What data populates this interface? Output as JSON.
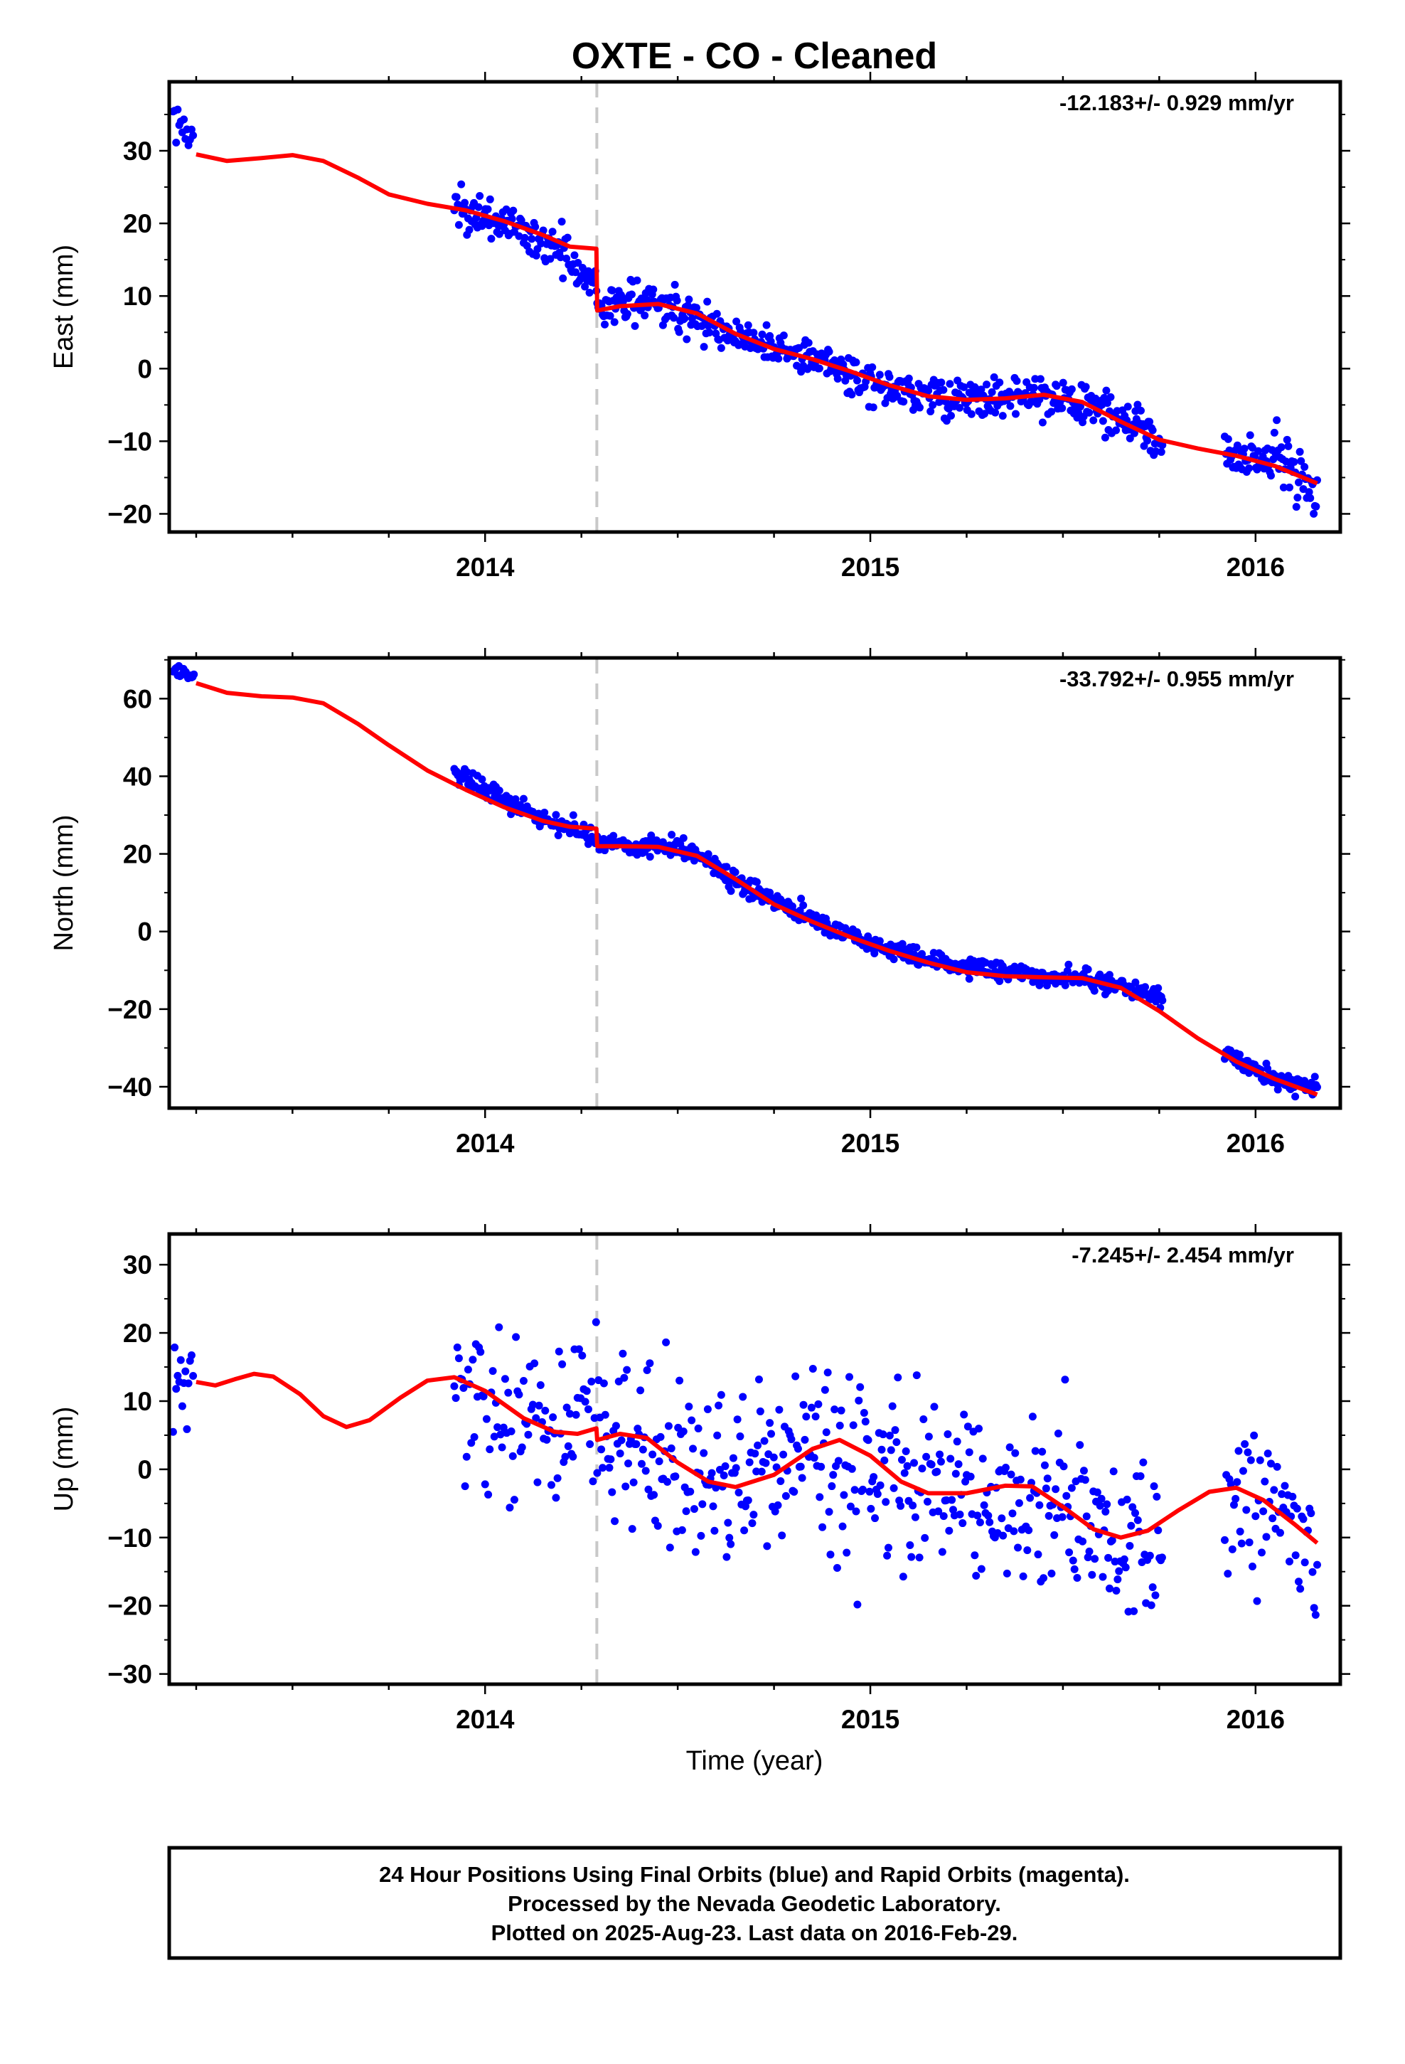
{
  "title": "OXTE  - CO - Cleaned",
  "xlabel": "Time (year)",
  "footer": [
    "24 Hour Positions Using Final Orbits (blue) and Rapid Orbits (magenta).",
    "Processed by the Nevada Geodetic Laboratory.",
    "Plotted on 2025-Aug-23. Last data on 2016-Feb-29."
  ],
  "colors": {
    "points": "#0000ff",
    "model": "#ff0000",
    "event_line": "#c8c8c8",
    "frame": "#000000"
  },
  "chart_data": [
    {
      "type": "scatter",
      "name": "east",
      "ylabel": "East (mm)",
      "rate_text": "-12.183+/- 0.929 mm/yr",
      "xlim": [
        2013.18,
        2016.22
      ],
      "ylim": [
        -22.5,
        39.5
      ],
      "x_ticks": [
        2014,
        2015,
        2016
      ],
      "y_ticks": [
        -20,
        -10,
        0,
        10,
        20,
        30
      ],
      "event_lines": [
        2014.29
      ],
      "model": [
        [
          2013.25,
          29.5
        ],
        [
          2013.33,
          28.6
        ],
        [
          2013.42,
          29.0
        ],
        [
          2013.5,
          29.4
        ],
        [
          2013.58,
          28.6
        ],
        [
          2013.67,
          26.3
        ],
        [
          2013.75,
          24.0
        ],
        [
          2013.85,
          22.7
        ],
        [
          2013.95,
          21.8
        ],
        [
          2014.05,
          20.3
        ],
        [
          2014.15,
          18.4
        ],
        [
          2014.22,
          16.8
        ],
        [
          2014.289,
          16.5
        ],
        [
          2014.291,
          8.0
        ],
        [
          2014.35,
          8.6
        ],
        [
          2014.45,
          8.9
        ],
        [
          2014.55,
          7.6
        ],
        [
          2014.65,
          4.8
        ],
        [
          2014.75,
          2.7
        ],
        [
          2014.85,
          1.3
        ],
        [
          2014.95,
          -0.4
        ],
        [
          2015.05,
          -2.3
        ],
        [
          2015.15,
          -3.8
        ],
        [
          2015.25,
          -4.3
        ],
        [
          2015.35,
          -4.1
        ],
        [
          2015.45,
          -3.6
        ],
        [
          2015.55,
          -4.6
        ],
        [
          2015.65,
          -7.3
        ],
        [
          2015.75,
          -9.8
        ],
        [
          2015.85,
          -11.0
        ],
        [
          2015.95,
          -12.0
        ],
        [
          2016.05,
          -13.4
        ],
        [
          2016.16,
          -15.8
        ]
      ],
      "segments": [
        {
          "x0": 2013.19,
          "x1": 2013.245,
          "step": 0.004,
          "sd": 1.3,
          "trend": [
            [
              2013.19,
              35.0
            ],
            [
              2013.245,
              31.0
            ]
          ]
        },
        {
          "x0": 2013.92,
          "x1": 2014.289,
          "step": 0.003,
          "sd": 1.4,
          "trend": [
            [
              2013.92,
              22.0
            ],
            [
              2014.05,
              20.0
            ],
            [
              2014.2,
              16.0
            ],
            [
              2014.289,
              11.5
            ]
          ]
        },
        {
          "x0": 2014.291,
          "x1": 2015.76,
          "step": 0.0028,
          "sd": 1.4,
          "trend": [
            [
              2014.291,
              8.5
            ],
            [
              2014.45,
              9.5
            ],
            [
              2014.55,
              7.0
            ],
            [
              2014.65,
              4.5
            ],
            [
              2014.85,
              1.5
            ],
            [
              2015.0,
              -2.0
            ],
            [
              2015.2,
              -4.0
            ],
            [
              2015.45,
              -4.0
            ],
            [
              2015.6,
              -5.5
            ],
            [
              2015.76,
              -10.0
            ]
          ]
        },
        {
          "x0": 2015.92,
          "x1": 2016.16,
          "step": 0.003,
          "sd": 1.6,
          "trend": [
            [
              2015.92,
              -12.5
            ],
            [
              2016.05,
              -12.0
            ],
            [
              2016.16,
              -16.5
            ]
          ]
        }
      ]
    },
    {
      "type": "scatter",
      "name": "north",
      "ylabel": "North (mm)",
      "rate_text": "-33.792+/- 0.955 mm/yr",
      "xlim": [
        2013.18,
        2016.22
      ],
      "ylim": [
        -45.5,
        70.5
      ],
      "x_ticks": [
        2014,
        2015,
        2016
      ],
      "y_ticks": [
        -40,
        -20,
        0,
        20,
        40,
        60
      ],
      "event_lines": [
        2014.29
      ],
      "model": [
        [
          2013.25,
          64.0
        ],
        [
          2013.33,
          61.5
        ],
        [
          2013.42,
          60.6
        ],
        [
          2013.5,
          60.3
        ],
        [
          2013.58,
          58.8
        ],
        [
          2013.67,
          53.5
        ],
        [
          2013.75,
          48.0
        ],
        [
          2013.85,
          41.5
        ],
        [
          2013.95,
          36.5
        ],
        [
          2014.05,
          32.0
        ],
        [
          2014.15,
          28.5
        ],
        [
          2014.22,
          27.0
        ],
        [
          2014.289,
          26.5
        ],
        [
          2014.291,
          22.0
        ],
        [
          2014.35,
          22.0
        ],
        [
          2014.45,
          21.8
        ],
        [
          2014.55,
          19.5
        ],
        [
          2014.65,
          13.5
        ],
        [
          2014.75,
          7.0
        ],
        [
          2014.85,
          2.5
        ],
        [
          2014.95,
          -1.5
        ],
        [
          2015.05,
          -5.0
        ],
        [
          2015.15,
          -8.0
        ],
        [
          2015.25,
          -10.5
        ],
        [
          2015.35,
          -11.5
        ],
        [
          2015.45,
          -11.8
        ],
        [
          2015.55,
          -12.0
        ],
        [
          2015.65,
          -14.5
        ],
        [
          2015.75,
          -20.5
        ],
        [
          2015.85,
          -27.5
        ],
        [
          2015.95,
          -33.5
        ],
        [
          2016.05,
          -38.0
        ],
        [
          2016.16,
          -42.0
        ]
      ],
      "segments": [
        {
          "x0": 2013.19,
          "x1": 2013.245,
          "step": 0.003,
          "sd": 1.0,
          "trend": [
            [
              2013.19,
              67.3
            ],
            [
              2013.245,
              65.5
            ]
          ]
        },
        {
          "x0": 2013.92,
          "x1": 2014.289,
          "step": 0.003,
          "sd": 1.2,
          "trend": [
            [
              2013.92,
              41.0
            ],
            [
              2014.0,
              37.0
            ],
            [
              2014.15,
              29.0
            ],
            [
              2014.289,
              24.0
            ]
          ]
        },
        {
          "x0": 2014.291,
          "x1": 2015.76,
          "step": 0.0028,
          "sd": 1.3,
          "trend": [
            [
              2014.291,
              22.5
            ],
            [
              2014.45,
              23.0
            ],
            [
              2014.55,
              20.0
            ],
            [
              2014.65,
              13.0
            ],
            [
              2014.8,
              5.0
            ],
            [
              2015.0,
              -3.0
            ],
            [
              2015.2,
              -8.5
            ],
            [
              2015.45,
              -11.5
            ],
            [
              2015.6,
              -13.0
            ],
            [
              2015.76,
              -17.0
            ]
          ]
        },
        {
          "x0": 2015.92,
          "x1": 2016.16,
          "step": 0.003,
          "sd": 1.2,
          "trend": [
            [
              2015.92,
              -31.5
            ],
            [
              2016.05,
              -38.0
            ],
            [
              2016.16,
              -41.0
            ]
          ]
        }
      ]
    },
    {
      "type": "scatter",
      "name": "up",
      "ylabel": "Up (mm)",
      "rate_text": "-7.245+/- 2.454 mm/yr",
      "xlim": [
        2013.18,
        2016.22
      ],
      "ylim": [
        -31.5,
        34.5
      ],
      "x_ticks": [
        2014,
        2015,
        2016
      ],
      "y_ticks": [
        -30,
        -20,
        -10,
        0,
        10,
        20,
        30
      ],
      "event_lines": [
        2014.29
      ],
      "model": [
        [
          2013.25,
          12.8
        ],
        [
          2013.3,
          12.3
        ],
        [
          2013.35,
          13.2
        ],
        [
          2013.4,
          14.0
        ],
        [
          2013.45,
          13.6
        ],
        [
          2013.52,
          11.0
        ],
        [
          2013.58,
          7.8
        ],
        [
          2013.64,
          6.2
        ],
        [
          2013.7,
          7.2
        ],
        [
          2013.78,
          10.5
        ],
        [
          2013.85,
          13.0
        ],
        [
          2013.92,
          13.5
        ],
        [
          2014.0,
          11.5
        ],
        [
          2014.1,
          7.5
        ],
        [
          2014.18,
          5.5
        ],
        [
          2014.24,
          5.2
        ],
        [
          2014.289,
          6.0
        ],
        [
          2014.291,
          4.3
        ],
        [
          2014.35,
          5.2
        ],
        [
          2014.42,
          4.6
        ],
        [
          2014.5,
          1.0
        ],
        [
          2014.58,
          -1.8
        ],
        [
          2014.65,
          -2.6
        ],
        [
          2014.75,
          -0.8
        ],
        [
          2014.85,
          3.0
        ],
        [
          2014.92,
          4.3
        ],
        [
          2015.0,
          2.0
        ],
        [
          2015.08,
          -1.8
        ],
        [
          2015.15,
          -3.5
        ],
        [
          2015.25,
          -3.5
        ],
        [
          2015.35,
          -2.4
        ],
        [
          2015.42,
          -2.5
        ],
        [
          2015.5,
          -5.5
        ],
        [
          2015.58,
          -8.8
        ],
        [
          2015.65,
          -10.0
        ],
        [
          2015.72,
          -9.0
        ],
        [
          2015.8,
          -6.0
        ],
        [
          2015.88,
          -3.3
        ],
        [
          2015.95,
          -2.7
        ],
        [
          2016.02,
          -4.5
        ],
        [
          2016.1,
          -8.0
        ],
        [
          2016.16,
          -10.8
        ]
      ],
      "segments": [
        {
          "x0": 2013.19,
          "x1": 2013.245,
          "step": 0.004,
          "sd": 5.0,
          "trend": [
            [
              2013.19,
              13.0
            ],
            [
              2013.245,
              11.0
            ]
          ]
        },
        {
          "x0": 2013.92,
          "x1": 2014.289,
          "step": 0.004,
          "sd": 6.0,
          "trend": [
            [
              2013.92,
              11.0
            ],
            [
              2014.1,
              7.0
            ],
            [
              2014.289,
              6.0
            ]
          ]
        },
        {
          "x0": 2014.291,
          "x1": 2015.76,
          "step": 0.0035,
          "sd": 6.3,
          "trend": [
            [
              2014.291,
              5.0
            ],
            [
              2014.5,
              1.0
            ],
            [
              2014.65,
              -3.0
            ],
            [
              2014.9,
              3.5
            ],
            [
              2015.1,
              -2.0
            ],
            [
              2015.3,
              -3.0
            ],
            [
              2015.5,
              -5.0
            ],
            [
              2015.65,
              -11.0
            ],
            [
              2015.76,
              -12.0
            ]
          ]
        },
        {
          "x0": 2015.92,
          "x1": 2016.16,
          "step": 0.004,
          "sd": 6.0,
          "trend": [
            [
              2015.92,
              -3.0
            ],
            [
              2016.05,
              -4.5
            ],
            [
              2016.16,
              -12.0
            ]
          ]
        }
      ]
    }
  ]
}
